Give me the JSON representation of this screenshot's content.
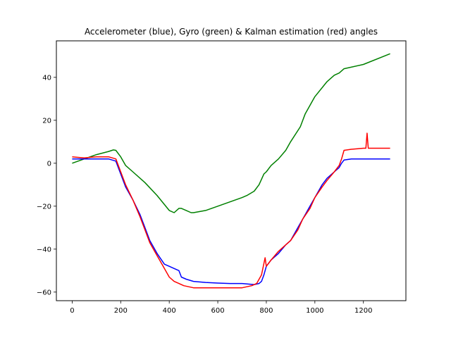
{
  "chart_data": {
    "type": "line",
    "title": "Accelerometer (blue), Gyro (green) & Kalman estimation (red) angles",
    "xlabel": "",
    "ylabel": "",
    "xlim": [
      -65,
      1375
    ],
    "ylim": [
      -64,
      57
    ],
    "xticks": [
      0,
      200,
      400,
      600,
      800,
      1000,
      1200
    ],
    "yticks": [
      -60,
      -40,
      -20,
      0,
      20,
      40
    ],
    "grid": false,
    "legend": "none",
    "series": [
      {
        "color": "#008000",
        "x": [
          0,
          50,
          100,
          150,
          170,
          180,
          200,
          220,
          250,
          300,
          350,
          400,
          420,
          440,
          450,
          470,
          490,
          500,
          550,
          600,
          650,
          700,
          720,
          750,
          770,
          790,
          800,
          820,
          850,
          880,
          900,
          940,
          960,
          1000,
          1050,
          1080,
          1100,
          1110,
          1120,
          1200,
          1310
        ],
        "y": [
          0,
          2,
          4,
          5.5,
          6.2,
          6,
          3,
          -1,
          -4,
          -9,
          -15,
          -22,
          -23,
          -21,
          -21,
          -22,
          -23,
          -23,
          -22,
          -20,
          -18,
          -16,
          -15,
          -13,
          -10,
          -5,
          -4,
          -1,
          2,
          6,
          10,
          17,
          23,
          31,
          38,
          41,
          42,
          43,
          44,
          46,
          51
        ]
      },
      {
        "color": "#0000ff",
        "x": [
          0,
          50,
          100,
          150,
          180,
          200,
          220,
          250,
          280,
          300,
          320,
          350,
          380,
          400,
          420,
          440,
          450,
          470,
          500,
          550,
          600,
          650,
          700,
          750,
          770,
          780,
          790,
          800,
          820,
          850,
          880,
          900,
          930,
          950,
          980,
          1000,
          1030,
          1050,
          1080,
          1100,
          1110,
          1120,
          1150,
          1200,
          1220,
          1250,
          1310
        ],
        "y": [
          2,
          2,
          2,
          2,
          1,
          -5,
          -11,
          -17,
          -24,
          -30,
          -36,
          -42,
          -47,
          -48,
          -49,
          -50,
          -53,
          -54,
          -55,
          -55.5,
          -55.8,
          -56,
          -56,
          -56.5,
          -56,
          -55,
          -52,
          -48,
          -45,
          -42,
          -38,
          -36,
          -30,
          -26,
          -20,
          -16,
          -10,
          -7,
          -4,
          -2,
          0,
          1.5,
          2,
          2,
          2,
          2,
          2
        ]
      },
      {
        "color": "#ff0000",
        "x": [
          0,
          50,
          100,
          150,
          180,
          200,
          220,
          250,
          280,
          300,
          320,
          350,
          380,
          400,
          420,
          440,
          460,
          480,
          500,
          550,
          600,
          650,
          700,
          740,
          760,
          780,
          795,
          800,
          820,
          850,
          880,
          900,
          930,
          950,
          980,
          1000,
          1030,
          1050,
          1080,
          1100,
          1110,
          1120,
          1150,
          1200,
          1210,
          1215,
          1220,
          1250,
          1310
        ],
        "y": [
          3,
          2.5,
          3,
          3,
          2,
          -4,
          -10,
          -17,
          -25,
          -31,
          -37,
          -43,
          -49,
          -53,
          -55,
          -56,
          -57,
          -57.5,
          -58,
          -58,
          -58,
          -58,
          -58,
          -57,
          -56,
          -52,
          -44,
          -48,
          -45,
          -41,
          -38,
          -36,
          -31,
          -26,
          -21,
          -16,
          -11,
          -8,
          -4,
          -1,
          2,
          6,
          6.5,
          7,
          7,
          14,
          7,
          7,
          7
        ]
      }
    ]
  }
}
